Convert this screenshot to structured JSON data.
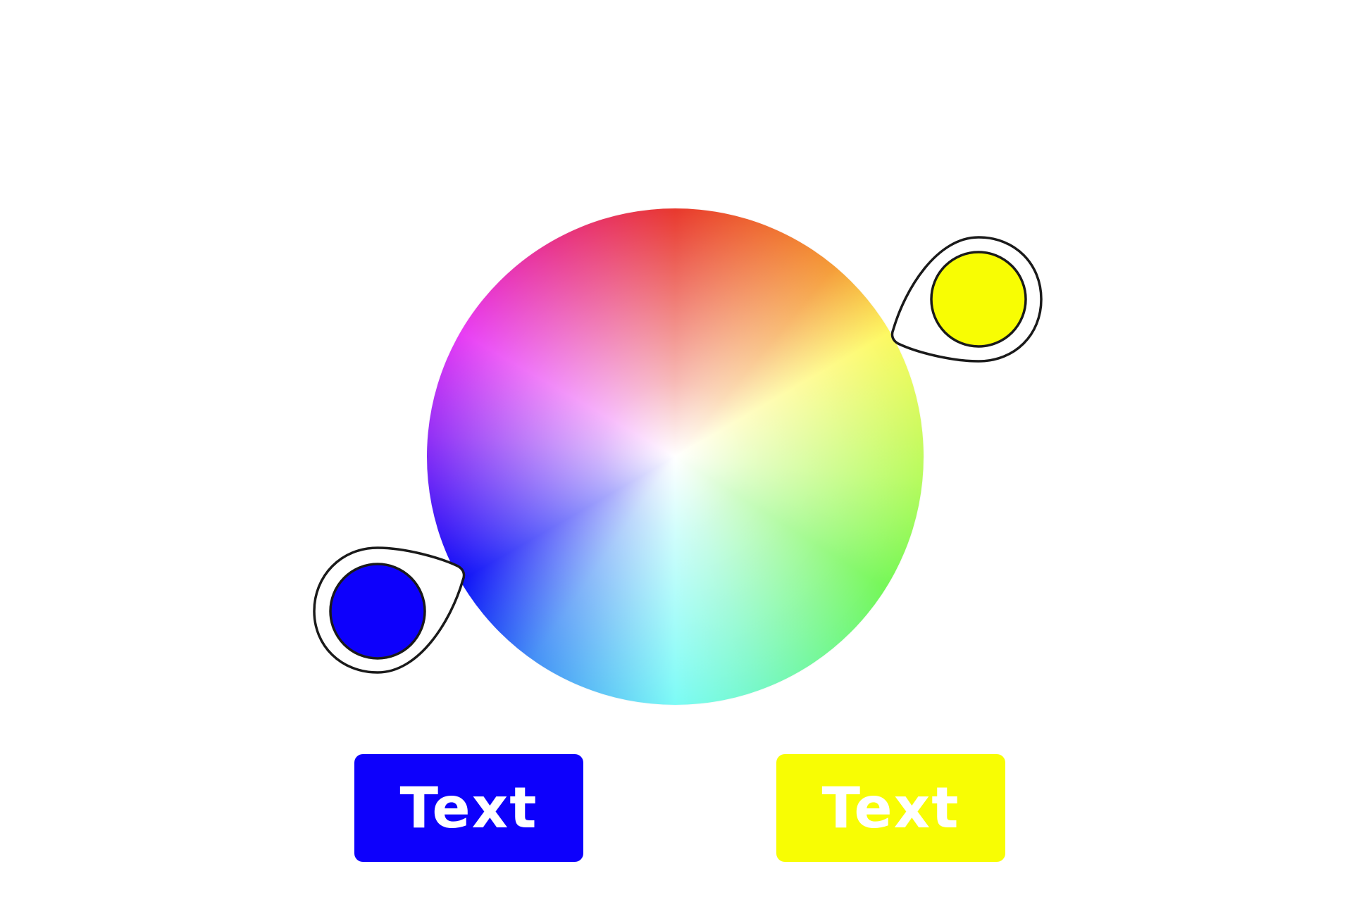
{
  "colors": {
    "blue": "#0d00fc",
    "yellow": "#f8fd03",
    "outline": "#1a1a1a"
  },
  "wheel": {
    "icon": "color-wheel",
    "gradient_stops": [
      "#e8382d",
      "#f59c37",
      "#fdf961",
      "#b7fb5d",
      "#74f757",
      "#77f8c6",
      "#7cfbf6",
      "#4590f6",
      "#0c0ff7",
      "#9330f5",
      "#e83cf4",
      "#e8348c"
    ]
  },
  "markers": [
    {
      "name": "blue",
      "icon": "color-picker-pin",
      "color": "#0d00fc"
    },
    {
      "name": "yellow",
      "icon": "color-picker-pin",
      "color": "#f8fd03"
    }
  ],
  "buttons": {
    "blue_label": "Text",
    "yellow_label": "Text"
  }
}
